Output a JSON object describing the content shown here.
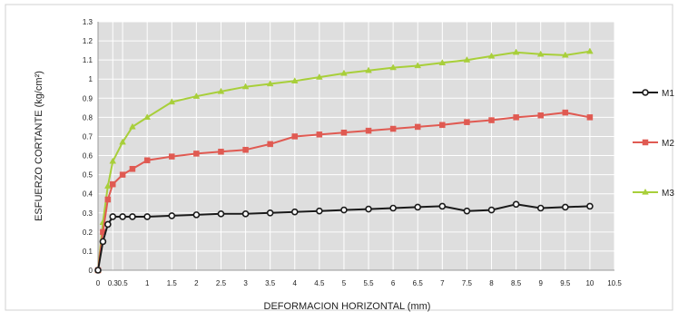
{
  "chart_data": {
    "type": "line",
    "title": "",
    "xlabel": "DEFORMACION HORIZONTAL (mm)",
    "ylabel": "ESFUERZO CORTANTE (kg/cm²)",
    "xlim": [
      0,
      10.5
    ],
    "ylim": [
      0,
      1.3
    ],
    "xticks": [
      0,
      0.3,
      0.5,
      1,
      1.5,
      2,
      2.5,
      3,
      3.5,
      4,
      4.5,
      5,
      5.5,
      6,
      6.5,
      7,
      7.5,
      8,
      8.5,
      9,
      9.5,
      10,
      10.5
    ],
    "xtick_labels": [
      "0",
      "0.3",
      "0.5",
      "1",
      "1.5",
      "2",
      "2.5",
      "3",
      "3.5",
      "4",
      "4.5",
      "5",
      "5.5",
      "6",
      "6.5",
      "7",
      "7.5",
      "8",
      "8.5",
      "9",
      "9.5",
      "10",
      "10.5"
    ],
    "yticks": [
      0,
      0.1,
      0.2,
      0.3,
      0.4,
      0.5,
      0.6,
      0.7,
      0.8,
      0.9,
      1,
      1.1,
      1.2,
      1.3
    ],
    "ytick_labels": [
      "0",
      "0.1",
      "0.2",
      "0.3",
      "0.4",
      "0.5",
      "0.6",
      "0.7",
      "0.8",
      "0.9",
      "1",
      "1.1",
      "1.2",
      "1.3"
    ],
    "grid": true,
    "legend_position": "right",
    "series": [
      {
        "name": "M1",
        "color": "#1a1a1a",
        "marker": "circle",
        "x": [
          0,
          0.1,
          0.2,
          0.3,
          0.5,
          0.7,
          1,
          1.5,
          2,
          2.5,
          3,
          3.5,
          4,
          4.5,
          5,
          5.5,
          6,
          6.5,
          7,
          7.5,
          8,
          8.5,
          9,
          9.5,
          10
        ],
        "y": [
          0,
          0.15,
          0.24,
          0.28,
          0.28,
          0.28,
          0.28,
          0.285,
          0.29,
          0.295,
          0.295,
          0.3,
          0.305,
          0.31,
          0.315,
          0.32,
          0.325,
          0.33,
          0.335,
          0.31,
          0.315,
          0.345,
          0.325,
          0.33,
          0.335
        ]
      },
      {
        "name": "M2",
        "color": "#e05a52",
        "marker": "square",
        "x": [
          0,
          0.1,
          0.2,
          0.3,
          0.5,
          0.7,
          1,
          1.5,
          2,
          2.5,
          3,
          3.5,
          4,
          4.5,
          5,
          5.5,
          6,
          6.5,
          7,
          7.5,
          8,
          8.5,
          9,
          9.5,
          10
        ],
        "y": [
          0,
          0.2,
          0.37,
          0.45,
          0.5,
          0.53,
          0.575,
          0.595,
          0.61,
          0.62,
          0.63,
          0.66,
          0.7,
          0.71,
          0.72,
          0.73,
          0.74,
          0.75,
          0.76,
          0.775,
          0.785,
          0.8,
          0.81,
          0.825,
          0.8
        ]
      },
      {
        "name": "M3",
        "color": "#a8cf3a",
        "marker": "triangle",
        "x": [
          0,
          0.1,
          0.2,
          0.3,
          0.5,
          0.7,
          1,
          1.5,
          2,
          2.5,
          3,
          3.5,
          4,
          4.5,
          5,
          5.5,
          6,
          6.5,
          7,
          7.5,
          8,
          8.5,
          9,
          9.5,
          10
        ],
        "y": [
          0,
          0.25,
          0.44,
          0.57,
          0.67,
          0.75,
          0.8,
          0.88,
          0.91,
          0.935,
          0.96,
          0.975,
          0.99,
          1.01,
          1.03,
          1.045,
          1.06,
          1.07,
          1.085,
          1.1,
          1.12,
          1.14,
          1.13,
          1.125,
          1.145
        ]
      }
    ]
  }
}
